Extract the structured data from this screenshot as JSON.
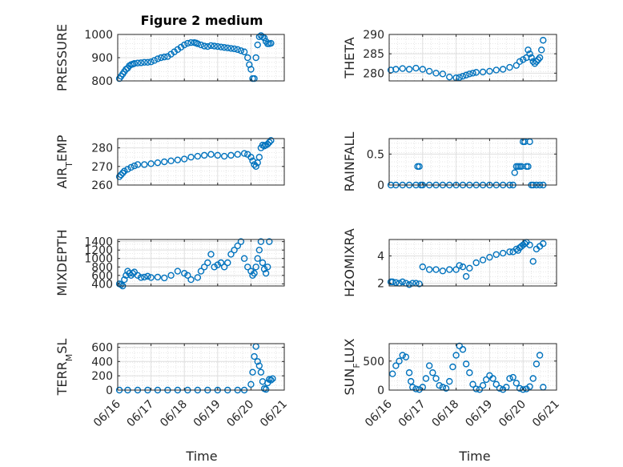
{
  "figure": {
    "title": "Figure 2 medium",
    "xlabel": "Time",
    "x_tick_labels": [
      "06/16",
      "06/17",
      "06/18",
      "06/19",
      "06/20",
      "06/21"
    ]
  },
  "colors": {
    "marker": "#0072BD",
    "axis": "#262626",
    "grid": "#dfdfdf"
  },
  "chart_data": [
    {
      "type": "scatter",
      "ylabel": "PRESSURE",
      "ylim": [
        800,
        1000
      ],
      "yticks": [
        800,
        900,
        1000
      ],
      "xlim": [
        0,
        5
      ],
      "x": [
        0.05,
        0.1,
        0.15,
        0.2,
        0.25,
        0.3,
        0.35,
        0.4,
        0.45,
        0.5,
        0.6,
        0.7,
        0.8,
        0.9,
        1.0,
        1.1,
        1.2,
        1.3,
        1.4,
        1.5,
        1.6,
        1.7,
        1.8,
        1.9,
        2.0,
        2.1,
        2.2,
        2.3,
        2.35,
        2.4,
        2.5,
        2.6,
        2.7,
        2.8,
        2.9,
        3.0,
        3.1,
        3.2,
        3.3,
        3.4,
        3.5,
        3.6,
        3.7,
        3.8,
        3.9,
        3.95,
        4.0,
        4.05,
        4.1,
        4.15,
        4.2,
        4.25,
        4.3,
        4.35,
        4.4,
        4.45,
        4.5,
        4.55,
        4.6
      ],
      "y": [
        810,
        820,
        830,
        840,
        850,
        855,
        865,
        870,
        872,
        875,
        877,
        878,
        880,
        880,
        882,
        888,
        895,
        900,
        903,
        905,
        915,
        925,
        935,
        945,
        955,
        962,
        965,
        965,
        963,
        960,
        955,
        950,
        948,
        952,
        950,
        948,
        946,
        944,
        942,
        940,
        938,
        935,
        930,
        925,
        900,
        870,
        850,
        810,
        810,
        900,
        955,
        990,
        995,
        990,
        985,
        970,
        960,
        960,
        962
      ]
    },
    {
      "type": "scatter",
      "ylabel": "THETA",
      "ylim": [
        278,
        290
      ],
      "yticks": [
        280,
        285,
        290
      ],
      "xlim": [
        0,
        5
      ],
      "x": [
        0.05,
        0.2,
        0.4,
        0.6,
        0.8,
        1.0,
        1.2,
        1.4,
        1.6,
        1.8,
        2.0,
        2.1,
        2.2,
        2.3,
        2.4,
        2.5,
        2.6,
        2.8,
        3.0,
        3.2,
        3.4,
        3.6,
        3.8,
        3.9,
        4.0,
        4.1,
        4.15,
        4.2,
        4.25,
        4.3,
        4.35,
        4.4,
        4.45,
        4.5,
        4.55,
        4.6
      ],
      "y": [
        280.8,
        281,
        281.2,
        281,
        281.3,
        281,
        280.5,
        280,
        279.8,
        279,
        278.8,
        278.9,
        279.2,
        279.5,
        279.8,
        280,
        280.2,
        280.3,
        280.5,
        280.8,
        281,
        281.5,
        282,
        283,
        283.5,
        284,
        286,
        285,
        284,
        283,
        282.5,
        283,
        283.5,
        284,
        286,
        288.5
      ]
    },
    {
      "type": "scatter",
      "ylabel": "AIR_TEMP",
      "ylim": [
        260,
        285
      ],
      "yticks": [
        260,
        270,
        280
      ],
      "xlim": [
        0,
        5
      ],
      "x": [
        0.05,
        0.1,
        0.15,
        0.2,
        0.3,
        0.4,
        0.5,
        0.6,
        0.8,
        1.0,
        1.2,
        1.4,
        1.6,
        1.8,
        2.0,
        2.2,
        2.4,
        2.6,
        2.8,
        3.0,
        3.2,
        3.4,
        3.6,
        3.8,
        3.9,
        4.0,
        4.05,
        4.1,
        4.15,
        4.2,
        4.25,
        4.3,
        4.35,
        4.4,
        4.45,
        4.5,
        4.55,
        4.6
      ],
      "y": [
        264.5,
        265.5,
        266.5,
        267.5,
        268.5,
        269.5,
        270.3,
        271,
        271,
        271.5,
        272,
        272.5,
        273,
        273.5,
        274,
        275,
        275.5,
        276,
        276.5,
        276,
        275.5,
        276,
        276.5,
        277,
        276.5,
        275,
        273,
        271,
        270,
        272,
        275,
        280,
        281.5,
        281,
        281.5,
        282,
        283,
        284
      ]
    },
    {
      "type": "scatter",
      "ylabel": "RAINFALL",
      "ylim": [
        0,
        0.75
      ],
      "yticks": [
        0,
        0.5
      ],
      "xlim": [
        0,
        5
      ],
      "x": [
        0.05,
        0.2,
        0.4,
        0.6,
        0.8,
        0.85,
        0.9,
        0.95,
        1.0,
        1.2,
        1.4,
        1.6,
        1.8,
        2.0,
        2.2,
        2.4,
        2.6,
        2.8,
        3.0,
        3.2,
        3.4,
        3.6,
        3.7,
        3.75,
        3.8,
        3.85,
        3.9,
        3.95,
        4.0,
        4.05,
        4.1,
        4.15,
        4.2,
        4.25,
        4.3,
        4.4,
        4.5,
        4.6
      ],
      "y": [
        0,
        0,
        0,
        0,
        0,
        0.3,
        0.3,
        0,
        0,
        0,
        0,
        0,
        0,
        0,
        0,
        0,
        0,
        0,
        0,
        0,
        0,
        0,
        0,
        0.2,
        0.3,
        0.3,
        0.3,
        0.3,
        0.7,
        0.7,
        0.3,
        0.3,
        0.7,
        0,
        0,
        0,
        0,
        0
      ]
    },
    {
      "type": "scatter",
      "ylabel": "MIXDEPTH",
      "ylim": [
        350,
        1450
      ],
      "yticks": [
        400,
        600,
        800,
        1000,
        1200,
        1400
      ],
      "xlim": [
        0,
        5
      ],
      "x": [
        0.05,
        0.1,
        0.15,
        0.2,
        0.25,
        0.3,
        0.35,
        0.4,
        0.45,
        0.5,
        0.6,
        0.7,
        0.8,
        0.9,
        1.0,
        1.2,
        1.4,
        1.6,
        1.8,
        2.0,
        2.1,
        2.2,
        2.4,
        2.5,
        2.6,
        2.7,
        2.8,
        2.9,
        3.0,
        3.1,
        3.2,
        3.3,
        3.4,
        3.5,
        3.6,
        3.7,
        3.8,
        3.9,
        4.0,
        4.05,
        4.1,
        4.15,
        4.2,
        4.25,
        4.3,
        4.35,
        4.4,
        4.45,
        4.5,
        4.55
      ],
      "y": [
        400,
        380,
        350,
        500,
        600,
        700,
        650,
        600,
        650,
        680,
        600,
        550,
        560,
        580,
        550,
        560,
        540,
        600,
        700,
        650,
        600,
        500,
        550,
        700,
        800,
        900,
        1100,
        800,
        850,
        900,
        800,
        900,
        1100,
        1200,
        1300,
        1400,
        1000,
        800,
        700,
        600,
        650,
        800,
        1000,
        1200,
        1400,
        900,
        750,
        650,
        800,
        1400
      ]
    },
    {
      "type": "scatter",
      "ylabel": "H2OMIXRA",
      "ylim": [
        1.8,
        5.2
      ],
      "yticks": [
        2,
        4
      ],
      "xlim": [
        0,
        5
      ],
      "x": [
        0.05,
        0.1,
        0.2,
        0.3,
        0.4,
        0.5,
        0.6,
        0.7,
        0.8,
        0.9,
        1.0,
        1.2,
        1.4,
        1.6,
        1.8,
        2.0,
        2.1,
        2.2,
        2.3,
        2.4,
        2.6,
        2.8,
        3.0,
        3.2,
        3.4,
        3.6,
        3.7,
        3.8,
        3.85,
        3.9,
        3.95,
        4.0,
        4.05,
        4.1,
        4.2,
        4.3,
        4.4,
        4.5,
        4.6
      ],
      "y": [
        2.1,
        2.1,
        2.05,
        2.0,
        2.1,
        2.0,
        1.9,
        2.0,
        2.0,
        1.95,
        3.2,
        3.0,
        3.0,
        2.9,
        3.0,
        3.0,
        3.3,
        3.2,
        2.5,
        3.1,
        3.5,
        3.7,
        3.9,
        4.1,
        4.2,
        4.3,
        4.3,
        4.5,
        4.4,
        4.6,
        4.7,
        4.8,
        4.9,
        5.0,
        4.8,
        3.6,
        4.5,
        4.7,
        4.9
      ]
    },
    {
      "type": "scatter",
      "ylabel": "TERR_MSL",
      "ylim": [
        0,
        650
      ],
      "yticks": [
        0,
        200,
        400,
        600
      ],
      "xlim": [
        0,
        5
      ],
      "x": [
        0.05,
        0.3,
        0.6,
        0.9,
        1.2,
        1.5,
        1.8,
        2.1,
        2.4,
        2.7,
        3.0,
        3.3,
        3.6,
        3.8,
        4.0,
        4.05,
        4.1,
        4.15,
        4.2,
        4.25,
        4.3,
        4.35,
        4.4,
        4.45,
        4.5,
        4.55,
        4.6,
        4.65
      ],
      "y": [
        0,
        0,
        0,
        0,
        0,
        0,
        0,
        0,
        0,
        0,
        0,
        0,
        0,
        0,
        80,
        250,
        470,
        610,
        400,
        340,
        250,
        120,
        20,
        10,
        100,
        150,
        140,
        160
      ]
    },
    {
      "type": "scatter",
      "ylabel": "SUN_FLUX",
      "ylim": [
        0,
        800
      ],
      "yticks": [
        0,
        500
      ],
      "xlim": [
        0,
        5
      ],
      "x": [
        0.1,
        0.2,
        0.3,
        0.4,
        0.5,
        0.6,
        0.65,
        0.7,
        0.8,
        0.9,
        1.0,
        1.1,
        1.2,
        1.3,
        1.4,
        1.5,
        1.6,
        1.7,
        1.8,
        1.9,
        2.0,
        2.1,
        2.2,
        2.3,
        2.4,
        2.5,
        2.6,
        2.7,
        2.8,
        2.9,
        3.0,
        3.1,
        3.2,
        3.3,
        3.4,
        3.5,
        3.6,
        3.7,
        3.8,
        3.9,
        4.0,
        4.1,
        4.2,
        4.3,
        4.4,
        4.5,
        4.6
      ],
      "y": [
        280,
        420,
        500,
        600,
        570,
        300,
        150,
        50,
        20,
        10,
        50,
        200,
        420,
        300,
        200,
        80,
        50,
        30,
        150,
        400,
        600,
        760,
        700,
        450,
        300,
        100,
        20,
        10,
        80,
        180,
        250,
        200,
        100,
        30,
        10,
        50,
        200,
        220,
        120,
        30,
        10,
        20,
        60,
        200,
        450,
        600,
        50
      ]
    }
  ]
}
